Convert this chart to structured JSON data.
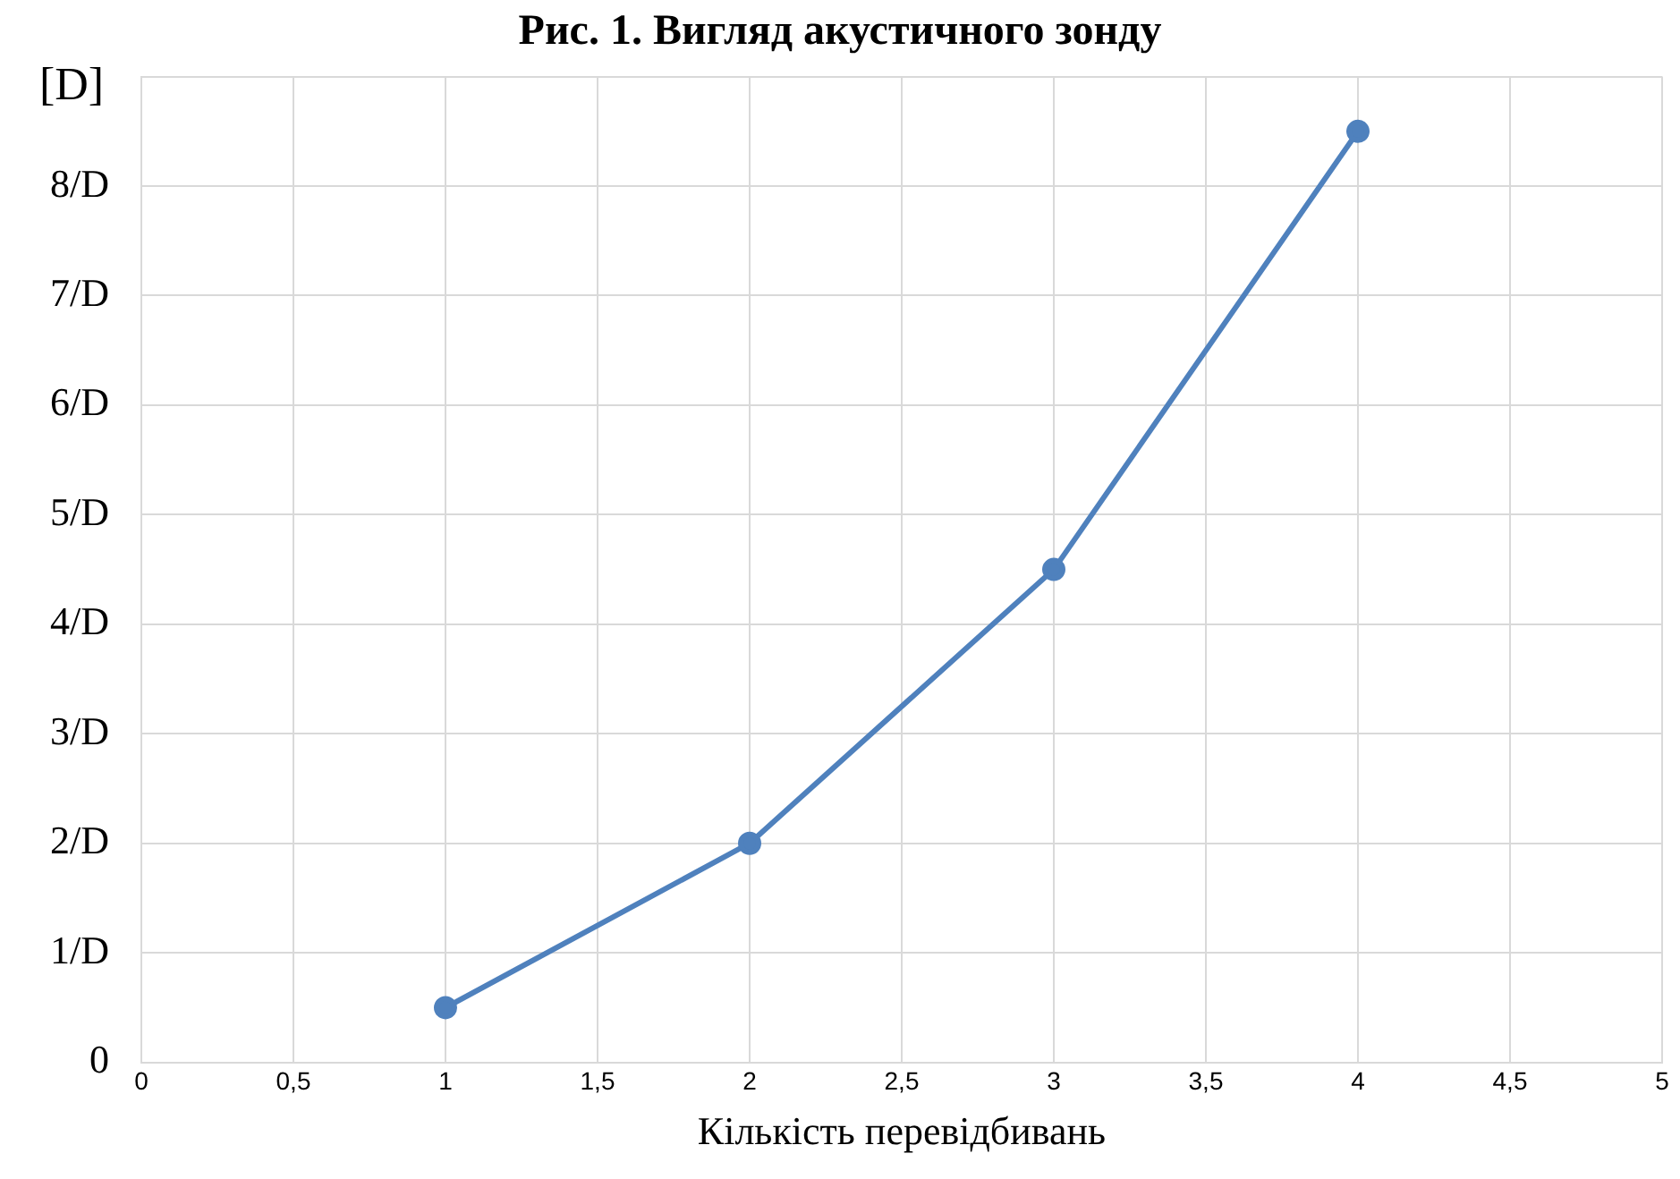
{
  "chart_data": {
    "type": "line",
    "title": "Рис. 1. Вигляд акустичного зонду",
    "xlabel": "Кількість перевідбивань",
    "ylabel": "[D]",
    "x": [
      1,
      2,
      3,
      4
    ],
    "series": [
      {
        "color": "#4f81bd",
        "values": [
          0.5,
          2,
          4.5,
          8.5
        ]
      }
    ],
    "xlim": [
      0,
      5
    ],
    "xticks": [
      0,
      {
        "value": 0.5,
        "label": "0,5"
      },
      1,
      {
        "value": 1.5,
        "label": "1,5"
      },
      2,
      {
        "value": 2.5,
        "label": "2,5"
      },
      3,
      {
        "value": 3.5,
        "label": "3,5"
      },
      4,
      {
        "value": 4.5,
        "label": "4,5"
      },
      5
    ],
    "ylim": [
      0,
      9
    ],
    "yticks": [
      0,
      {
        "value": 1,
        "label": "1/D"
      },
      {
        "value": 2,
        "label": "2/D"
      },
      {
        "value": 3,
        "label": "3/D"
      },
      {
        "value": 4,
        "label": "4/D"
      },
      {
        "value": 5,
        "label": "5/D"
      },
      {
        "value": 6,
        "label": "6/D"
      },
      {
        "value": 7,
        "label": "7/D"
      },
      {
        "value": 8,
        "label": "8/D"
      },
      {
        "value": 9,
        "label": null
      }
    ],
    "grid": true,
    "legend": false,
    "marker": "circle",
    "line_style": "solid"
  }
}
